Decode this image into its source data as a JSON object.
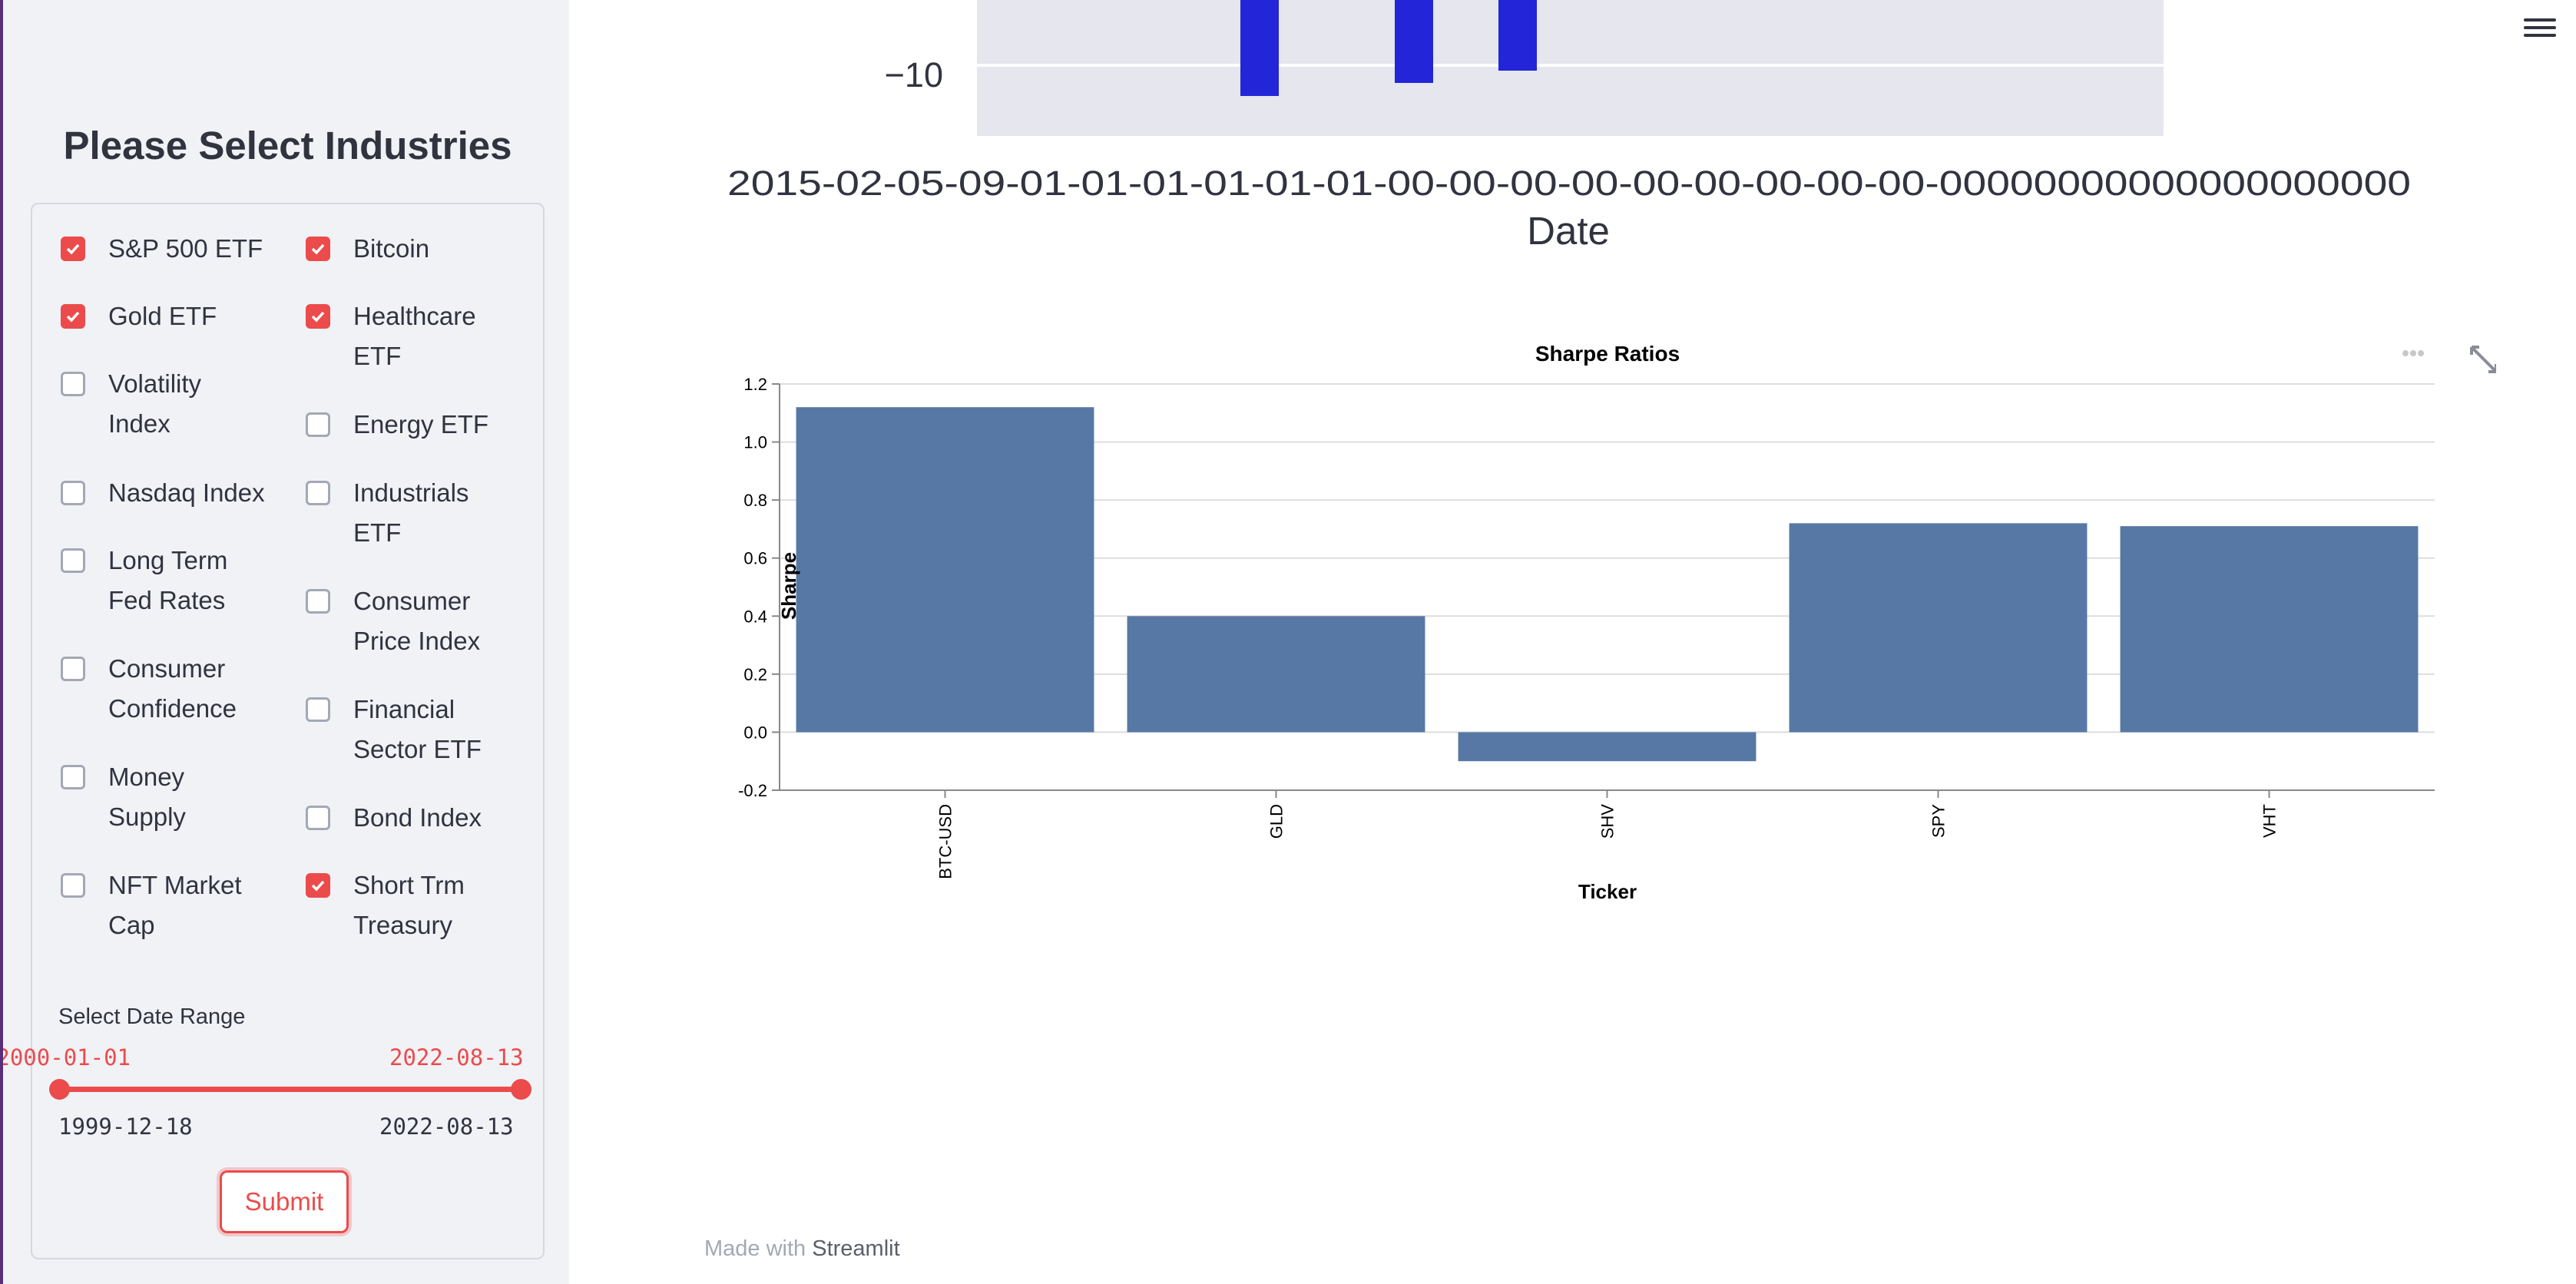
{
  "sidebar": {
    "title": "Please Select Industries",
    "checkboxes": [
      {
        "label": "S&P 500 ETF",
        "checked": true
      },
      {
        "label": "Bitcoin",
        "checked": true
      },
      {
        "label": "Gold ETF",
        "checked": true
      },
      {
        "label": "Healthcare ETF",
        "checked": true
      },
      {
        "label": "Volatility Index",
        "checked": false
      },
      {
        "label": "Energy ETF",
        "checked": false
      },
      {
        "label": "Nasdaq Index",
        "checked": false
      },
      {
        "label": "Industrials ETF",
        "checked": false
      },
      {
        "label": "Long Term Fed Rates",
        "checked": false
      },
      {
        "label": "Consumer Price Index",
        "checked": false
      },
      {
        "label": "Consumer Confidence",
        "checked": false
      },
      {
        "label": "Financial Sector ETF",
        "checked": false
      },
      {
        "label": "Money Supply",
        "checked": false
      },
      {
        "label": "Bond Index",
        "checked": false
      },
      {
        "label": "NFT Market Cap",
        "checked": false
      },
      {
        "label": "Short Trm Treasury",
        "checked": true
      }
    ],
    "date_range": {
      "label": "Select Date Range",
      "selected_start": "2000-01-01",
      "selected_end": "2022-08-13",
      "min": "1999-12-18",
      "max": "2022-08-13"
    },
    "submit_label": "Submit"
  },
  "top_chart": {
    "ytick": "−10",
    "xlabel": "Date",
    "xticks_overlap": "2015-02-05-09-01-01-01-01-01-01-00-00-00-00-00-00-00-00-00-00000000000000000000",
    "accent": "#2326d8"
  },
  "chart_data": {
    "type": "bar",
    "title": "Sharpe Ratios",
    "xlabel": "Ticker",
    "ylabel": "Sharpe",
    "categories": [
      "BTC-USD",
      "GLD",
      "SHV",
      "SPY",
      "VHT"
    ],
    "values": [
      1.12,
      0.4,
      -0.1,
      0.72,
      0.71
    ],
    "ylim": [
      -0.2,
      1.2
    ],
    "yticks": [
      "-0.2",
      "0.0",
      "0.2",
      "0.4",
      "0.6",
      "0.8",
      "1.0",
      "1.2"
    ],
    "color": "#5778a4"
  },
  "footer": {
    "prefix": "Made with ",
    "brand": "Streamlit"
  }
}
